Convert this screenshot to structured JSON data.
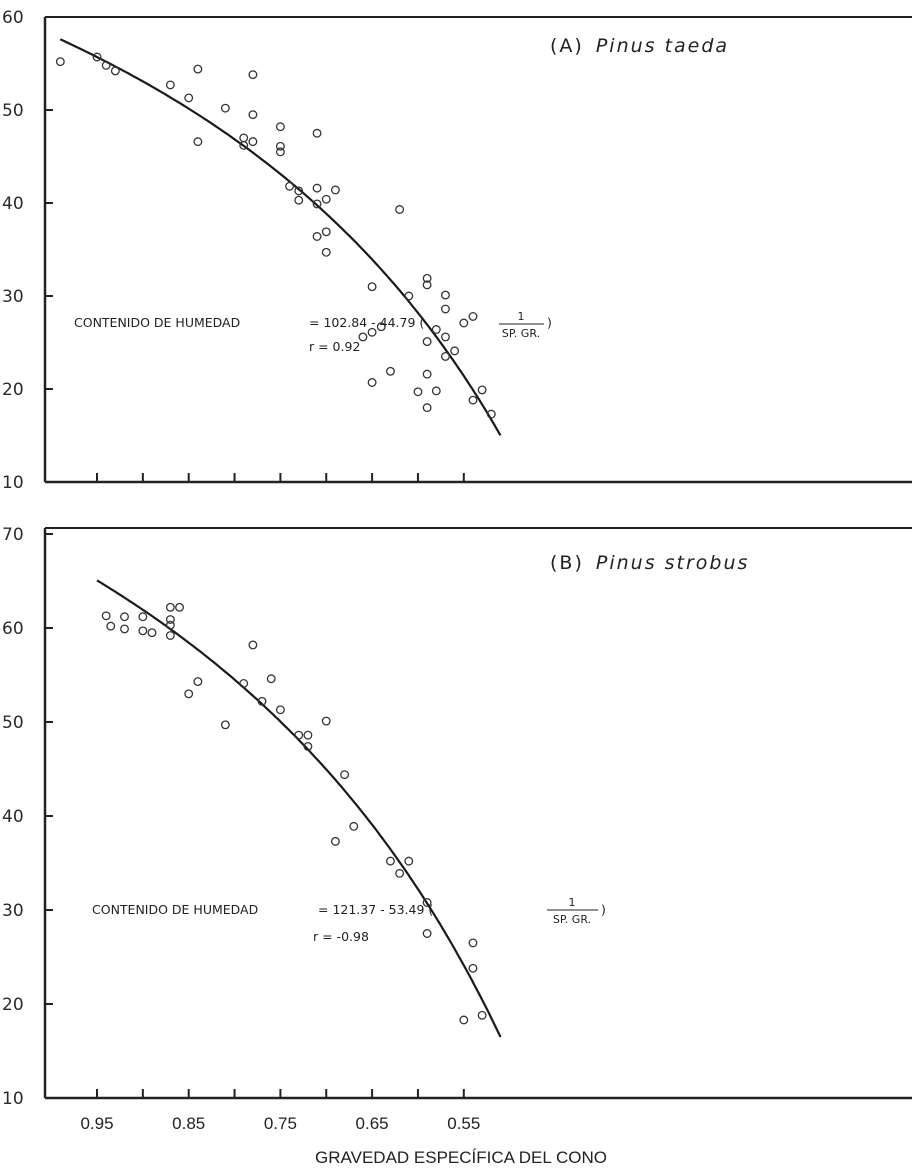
{
  "chart_data": [
    {
      "type": "scatter",
      "panel_label": "(A)",
      "species": "Pinus taeda",
      "equation": {
        "lhs": "CONTENIDO DE HUMEDAD",
        "rhs": "= 102.84 - 44.79 (",
        "numerator": "1",
        "denominator": "SP. GR.",
        "close": ")"
      },
      "r_label": "r = 0.92",
      "xlim": [
        0.51,
        0.99
      ],
      "ylim": [
        10,
        60
      ],
      "x_reversed": true,
      "yticks": [
        10,
        20,
        30,
        40,
        50,
        60
      ],
      "ytick_labels": [
        "10",
        "20",
        "30",
        "40",
        "50",
        "60"
      ],
      "fit": {
        "intercept": 102.84,
        "slope": -44.79,
        "x_range": [
          0.51,
          0.99
        ]
      },
      "points": [
        [
          0.99,
          55.2
        ],
        [
          0.95,
          55.7
        ],
        [
          0.94,
          54.8
        ],
        [
          0.93,
          54.2
        ],
        [
          0.87,
          52.7
        ],
        [
          0.85,
          51.3
        ],
        [
          0.84,
          54.4
        ],
        [
          0.84,
          46.6
        ],
        [
          0.81,
          50.2
        ],
        [
          0.79,
          47.0
        ],
        [
          0.79,
          46.2
        ],
        [
          0.78,
          53.8
        ],
        [
          0.78,
          49.5
        ],
        [
          0.78,
          46.6
        ],
        [
          0.75,
          48.2
        ],
        [
          0.75,
          46.1
        ],
        [
          0.75,
          45.5
        ],
        [
          0.74,
          41.8
        ],
        [
          0.73,
          41.3
        ],
        [
          0.73,
          40.3
        ],
        [
          0.71,
          47.5
        ],
        [
          0.71,
          41.6
        ],
        [
          0.71,
          39.9
        ],
        [
          0.71,
          36.4
        ],
        [
          0.7,
          40.4
        ],
        [
          0.7,
          36.9
        ],
        [
          0.7,
          34.7
        ],
        [
          0.69,
          41.4
        ],
        [
          0.66,
          25.6
        ],
        [
          0.65,
          31.0
        ],
        [
          0.65,
          26.1
        ],
        [
          0.65,
          20.7
        ],
        [
          0.64,
          26.7
        ],
        [
          0.63,
          21.9
        ],
        [
          0.62,
          39.3
        ],
        [
          0.61,
          30.0
        ],
        [
          0.6,
          19.7
        ],
        [
          0.59,
          31.9
        ],
        [
          0.59,
          31.2
        ],
        [
          0.59,
          25.1
        ],
        [
          0.59,
          21.6
        ],
        [
          0.59,
          18.0
        ],
        [
          0.58,
          26.4
        ],
        [
          0.58,
          19.8
        ],
        [
          0.57,
          30.1
        ],
        [
          0.57,
          28.6
        ],
        [
          0.57,
          25.6
        ],
        [
          0.57,
          23.5
        ],
        [
          0.56,
          24.1
        ],
        [
          0.55,
          27.1
        ],
        [
          0.54,
          27.8
        ],
        [
          0.54,
          18.8
        ],
        [
          0.53,
          19.9
        ],
        [
          0.52,
          17.3
        ]
      ]
    },
    {
      "type": "scatter",
      "panel_label": "(B)",
      "species": "Pinus strobus",
      "equation": {
        "lhs": "CONTENIDO DE HUMEDAD",
        "rhs": "= 121.37 - 53.49 (",
        "numerator": "1",
        "denominator": "SP. GR.",
        "close": ")"
      },
      "r_label": "r = -0.98",
      "xlim": [
        0.51,
        0.99
      ],
      "ylim": [
        10,
        70
      ],
      "x_reversed": true,
      "xticks": [
        0.95,
        0.85,
        0.75,
        0.65,
        0.55
      ],
      "xtick_labels": [
        "0.95",
        "0.85",
        "0.75",
        "0.65",
        "0.55"
      ],
      "xlabel": "GRAVEDAD ESPECÍFICA DEL CONO",
      "yticks": [
        10,
        20,
        30,
        40,
        50,
        60,
        70
      ],
      "ytick_labels": [
        "10",
        "20",
        "30",
        "40",
        "50",
        "60",
        "70"
      ],
      "fit": {
        "intercept": 121.37,
        "slope": -53.49,
        "x_range": [
          0.51,
          0.95
        ]
      },
      "points": [
        [
          0.94,
          61.3
        ],
        [
          0.935,
          60.2
        ],
        [
          0.92,
          61.2
        ],
        [
          0.92,
          59.9
        ],
        [
          0.9,
          61.2
        ],
        [
          0.9,
          59.7
        ],
        [
          0.89,
          59.5
        ],
        [
          0.87,
          62.2
        ],
        [
          0.87,
          60.9
        ],
        [
          0.87,
          60.3
        ],
        [
          0.87,
          59.2
        ],
        [
          0.86,
          62.2
        ],
        [
          0.85,
          53.0
        ],
        [
          0.84,
          54.3
        ],
        [
          0.81,
          49.7
        ],
        [
          0.79,
          54.1
        ],
        [
          0.78,
          58.2
        ],
        [
          0.77,
          52.2
        ],
        [
          0.76,
          54.6
        ],
        [
          0.75,
          51.3
        ],
        [
          0.73,
          48.6
        ],
        [
          0.72,
          48.6
        ],
        [
          0.72,
          47.4
        ],
        [
          0.7,
          50.1
        ],
        [
          0.69,
          37.3
        ],
        [
          0.68,
          44.4
        ],
        [
          0.67,
          38.9
        ],
        [
          0.63,
          35.2
        ],
        [
          0.62,
          33.9
        ],
        [
          0.61,
          35.2
        ],
        [
          0.59,
          30.8
        ],
        [
          0.59,
          27.5
        ],
        [
          0.55,
          18.3
        ],
        [
          0.54,
          26.5
        ],
        [
          0.54,
          23.8
        ],
        [
          0.53,
          18.8
        ]
      ]
    }
  ]
}
